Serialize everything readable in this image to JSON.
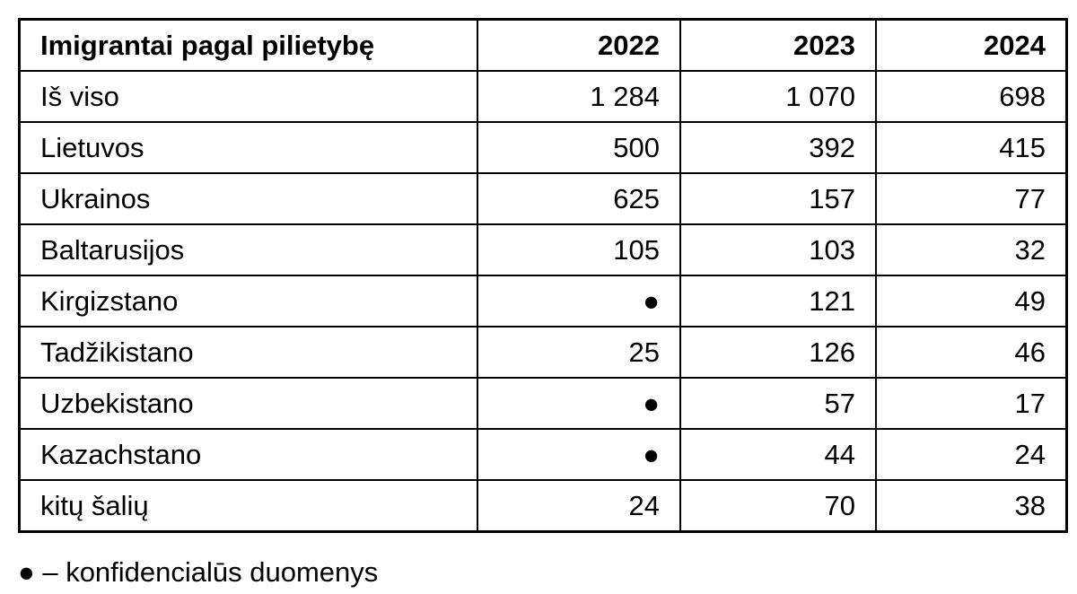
{
  "table": {
    "header": [
      "Imigrantai pagal pilietybę",
      "2022",
      "2023",
      "2024"
    ],
    "rows": [
      [
        "Iš viso",
        "1 284",
        "1 070",
        "698"
      ],
      [
        "Lietuvos",
        "500",
        "392",
        "415"
      ],
      [
        "Ukrainos",
        "625",
        "157",
        "77"
      ],
      [
        "Baltarusijos",
        "105",
        "103",
        "32"
      ],
      [
        "Kirgizstano",
        "●",
        "121",
        "49"
      ],
      [
        "Tadžikistano",
        "25",
        "126",
        "46"
      ],
      [
        "Uzbekistano",
        "●",
        "57",
        "17"
      ],
      [
        "Kazachstano",
        "●",
        "44",
        "24"
      ],
      [
        "kitų šalių",
        "24",
        "70",
        "38"
      ]
    ]
  },
  "footnote": "● – konfidencialūs duomenys"
}
